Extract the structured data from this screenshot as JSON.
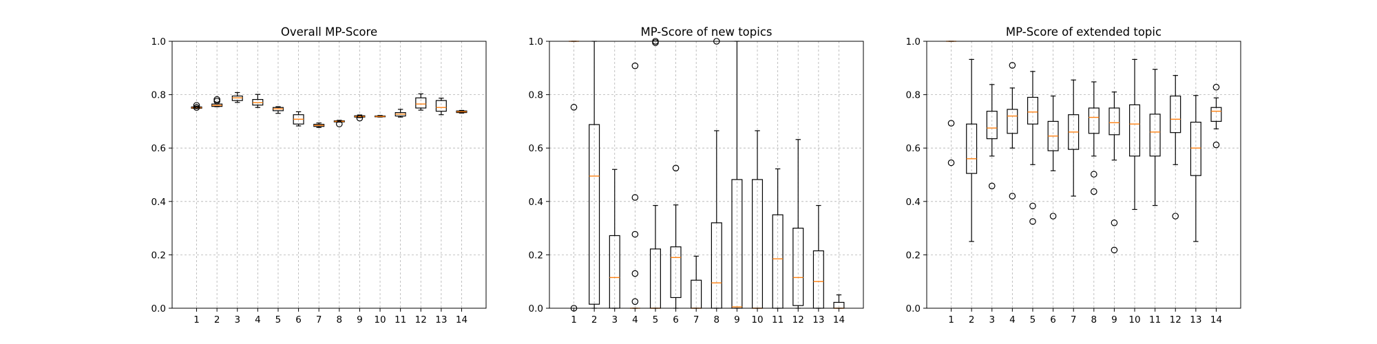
{
  "chart_data": [
    {
      "type": "box",
      "title": "Overall MP-Score",
      "xlabel": "",
      "ylabel": "",
      "categories": [
        "1",
        "2",
        "3",
        "4",
        "5",
        "6",
        "7",
        "8",
        "9",
        "10",
        "11",
        "12",
        "13",
        "14"
      ],
      "ylim": [
        0,
        1
      ],
      "yticks": [
        "0.0",
        "0.2",
        "0.4",
        "0.6",
        "0.8",
        "1.0"
      ],
      "grid": true,
      "median_color": "#ff7f0e",
      "boxes": [
        {
          "whislo": 0.748,
          "q1": 0.749,
          "med": 0.751,
          "q3": 0.754,
          "whishi": 0.757,
          "fliers": [
            0.76,
            0.752
          ]
        },
        {
          "whislo": 0.755,
          "q1": 0.756,
          "med": 0.76,
          "q3": 0.765,
          "whishi": 0.771,
          "fliers": [
            0.782,
            0.776
          ]
        },
        {
          "whislo": 0.771,
          "q1": 0.778,
          "med": 0.788,
          "q3": 0.795,
          "whishi": 0.808,
          "fliers": []
        },
        {
          "whislo": 0.752,
          "q1": 0.761,
          "med": 0.77,
          "q3": 0.782,
          "whishi": 0.801,
          "fliers": []
        },
        {
          "whislo": 0.73,
          "q1": 0.74,
          "med": 0.747,
          "q3": 0.752,
          "whishi": 0.755,
          "fliers": []
        },
        {
          "whislo": 0.683,
          "q1": 0.69,
          "med": 0.708,
          "q3": 0.725,
          "whishi": 0.736,
          "fliers": []
        },
        {
          "whislo": 0.677,
          "q1": 0.681,
          "med": 0.685,
          "q3": 0.689,
          "whishi": 0.694,
          "fliers": []
        },
        {
          "whislo": 0.697,
          "q1": 0.698,
          "med": 0.7,
          "q3": 0.702,
          "whishi": 0.704,
          "fliers": [
            0.69
          ]
        },
        {
          "whislo": 0.714,
          "q1": 0.716,
          "med": 0.718,
          "q3": 0.721,
          "whishi": 0.724,
          "fliers": [
            0.712
          ]
        },
        {
          "whislo": 0.716,
          "q1": 0.717,
          "med": 0.718,
          "q3": 0.72,
          "whishi": 0.722,
          "fliers": []
        },
        {
          "whislo": 0.716,
          "q1": 0.72,
          "med": 0.727,
          "q3": 0.733,
          "whishi": 0.745,
          "fliers": []
        },
        {
          "whislo": 0.742,
          "q1": 0.75,
          "med": 0.765,
          "q3": 0.788,
          "whishi": 0.803,
          "fliers": []
        },
        {
          "whislo": 0.725,
          "q1": 0.738,
          "med": 0.752,
          "q3": 0.778,
          "whishi": 0.787,
          "fliers": []
        },
        {
          "whislo": 0.731,
          "q1": 0.733,
          "med": 0.736,
          "q3": 0.739,
          "whishi": 0.741,
          "fliers": []
        }
      ]
    },
    {
      "type": "box",
      "title": "MP-Score of new topics",
      "xlabel": "",
      "ylabel": "",
      "categories": [
        "1",
        "2",
        "3",
        "4",
        "5",
        "6",
        "7",
        "8",
        "9",
        "10",
        "11",
        "12",
        "13",
        "14"
      ],
      "ylim": [
        0,
        1
      ],
      "yticks": [
        "0.0",
        "0.2",
        "0.4",
        "0.6",
        "0.8",
        "1.0"
      ],
      "grid": true,
      "median_color": "#ff7f0e",
      "boxes": [
        {
          "whislo": 1.0,
          "q1": 1.0,
          "med": 1.0,
          "q3": 1.0,
          "whishi": 1.0,
          "fliers": [
            0.753,
            0.0
          ]
        },
        {
          "whislo": 0.0,
          "q1": 0.015,
          "med": 0.495,
          "q3": 0.688,
          "whishi": 1.0,
          "fliers": []
        },
        {
          "whislo": 0.0,
          "q1": 0.0,
          "med": 0.115,
          "q3": 0.272,
          "whishi": 0.52,
          "fliers": []
        },
        {
          "whislo": 0.0,
          "q1": 0.0,
          "med": 0.0,
          "q3": 0.0,
          "whishi": 0.0,
          "fliers": [
            0.908,
            0.415,
            0.277,
            0.13,
            0.025
          ]
        },
        {
          "whislo": 0.0,
          "q1": 0.0,
          "med": 0.0,
          "q3": 0.222,
          "whishi": 0.385,
          "fliers": [
            1.0,
            0.995
          ]
        },
        {
          "whislo": 0.0,
          "q1": 0.04,
          "med": 0.19,
          "q3": 0.23,
          "whishi": 0.387,
          "fliers": [
            0.525
          ]
        },
        {
          "whislo": 0.0,
          "q1": 0.0,
          "med": 0.0,
          "q3": 0.105,
          "whishi": 0.195,
          "fliers": []
        },
        {
          "whislo": 0.0,
          "q1": 0.0,
          "med": 0.095,
          "q3": 0.32,
          "whishi": 0.665,
          "fliers": [
            1.0
          ]
        },
        {
          "whislo": 0.0,
          "q1": 0.0,
          "med": 0.005,
          "q3": 0.482,
          "whishi": 1.0,
          "fliers": []
        },
        {
          "whislo": 0.0,
          "q1": 0.0,
          "med": 0.0,
          "q3": 0.482,
          "whishi": 0.665,
          "fliers": []
        },
        {
          "whislo": 0.0,
          "q1": 0.0,
          "med": 0.185,
          "q3": 0.35,
          "whishi": 0.522,
          "fliers": []
        },
        {
          "whislo": 0.0,
          "q1": 0.01,
          "med": 0.115,
          "q3": 0.3,
          "whishi": 0.632,
          "fliers": []
        },
        {
          "whislo": 0.0,
          "q1": 0.0,
          "med": 0.1,
          "q3": 0.215,
          "whishi": 0.385,
          "fliers": []
        },
        {
          "whislo": 0.0,
          "q1": 0.0,
          "med": 0.0,
          "q3": 0.022,
          "whishi": 0.05,
          "fliers": []
        }
      ]
    },
    {
      "type": "box",
      "title": "MP-Score of extended topic",
      "xlabel": "",
      "ylabel": "",
      "categories": [
        "1",
        "2",
        "3",
        "4",
        "5",
        "6",
        "7",
        "8",
        "9",
        "10",
        "11",
        "12",
        "13",
        "14"
      ],
      "ylim": [
        0,
        1
      ],
      "yticks": [
        "0.0",
        "0.2",
        "0.4",
        "0.6",
        "0.8",
        "1.0"
      ],
      "grid": true,
      "median_color": "#ff7f0e",
      "boxes": [
        {
          "whislo": 1.0,
          "q1": 1.0,
          "med": 1.0,
          "q3": 1.0,
          "whishi": 1.0,
          "fliers": [
            0.693,
            0.545
          ]
        },
        {
          "whislo": 0.25,
          "q1": 0.505,
          "med": 0.56,
          "q3": 0.69,
          "whishi": 0.932,
          "fliers": []
        },
        {
          "whislo": 0.57,
          "q1": 0.635,
          "med": 0.675,
          "q3": 0.738,
          "whishi": 0.838,
          "fliers": [
            0.458
          ]
        },
        {
          "whislo": 0.6,
          "q1": 0.655,
          "med": 0.72,
          "q3": 0.745,
          "whishi": 0.825,
          "fliers": [
            0.91,
            0.42
          ]
        },
        {
          "whislo": 0.538,
          "q1": 0.69,
          "med": 0.735,
          "q3": 0.79,
          "whishi": 0.887,
          "fliers": [
            0.383,
            0.325
          ]
        },
        {
          "whislo": 0.515,
          "q1": 0.59,
          "med": 0.645,
          "q3": 0.7,
          "whishi": 0.795,
          "fliers": [
            0.345
          ]
        },
        {
          "whislo": 0.42,
          "q1": 0.595,
          "med": 0.66,
          "q3": 0.725,
          "whishi": 0.855,
          "fliers": []
        },
        {
          "whislo": 0.57,
          "q1": 0.655,
          "med": 0.715,
          "q3": 0.75,
          "whishi": 0.848,
          "fliers": [
            0.502,
            0.437
          ]
        },
        {
          "whislo": 0.555,
          "q1": 0.65,
          "med": 0.695,
          "q3": 0.75,
          "whishi": 0.81,
          "fliers": [
            0.32,
            0.218
          ]
        },
        {
          "whislo": 0.37,
          "q1": 0.57,
          "med": 0.69,
          "q3": 0.762,
          "whishi": 0.932,
          "fliers": []
        },
        {
          "whislo": 0.385,
          "q1": 0.57,
          "med": 0.66,
          "q3": 0.727,
          "whishi": 0.895,
          "fliers": []
        },
        {
          "whislo": 0.538,
          "q1": 0.658,
          "med": 0.708,
          "q3": 0.795,
          "whishi": 0.872,
          "fliers": [
            0.345
          ]
        },
        {
          "whislo": 0.25,
          "q1": 0.497,
          "med": 0.6,
          "q3": 0.697,
          "whishi": 0.797,
          "fliers": []
        },
        {
          "whislo": 0.672,
          "q1": 0.7,
          "med": 0.738,
          "q3": 0.752,
          "whishi": 0.788,
          "fliers": [
            0.828,
            0.612
          ]
        }
      ]
    }
  ]
}
